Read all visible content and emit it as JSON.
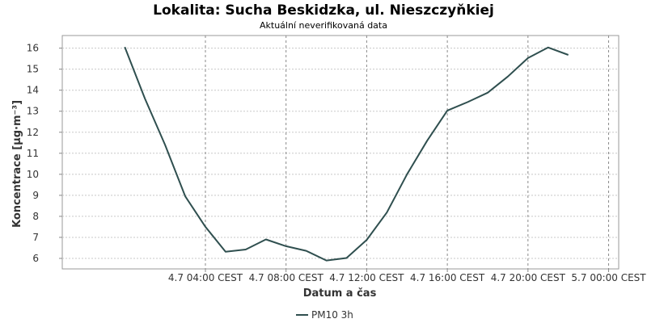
{
  "chart_data": {
    "type": "line",
    "title": "Lokalita: Sucha Beskidzka, ul. Nieszczyňkiej",
    "subtitle": "Aktuální neverifikovaná data",
    "xlabel": "Datum a čas",
    "ylabel": "Koncentrace [µg·m⁻³]",
    "x_range_hours": [
      -3.1,
      24.5
    ],
    "x_ticks": [
      {
        "hour": 4,
        "label": "4.7 04:00 CEST"
      },
      {
        "hour": 8,
        "label": "4.7 08:00 CEST"
      },
      {
        "hour": 12,
        "label": "4.7 12:00 CEST"
      },
      {
        "hour": 16,
        "label": "4.7 16:00 CEST"
      },
      {
        "hour": 20,
        "label": "4.7 20:00 CEST"
      },
      {
        "hour": 24,
        "label": "5.7 00:00 CEST"
      }
    ],
    "y_ticks": [
      6,
      7,
      8,
      9,
      10,
      11,
      12,
      13,
      14,
      15,
      16
    ],
    "ylim": [
      5.5,
      16.6
    ],
    "grid": true,
    "legend_position": "bottom",
    "series": [
      {
        "name": "PM10 3h",
        "color": "#2f4f4f",
        "x_hours": [
          0,
          1,
          2,
          3,
          4,
          5,
          6,
          7,
          8,
          9,
          10,
          11,
          12,
          13,
          14,
          15,
          16,
          17,
          18,
          19,
          20,
          21,
          22,
          23
        ],
        "values": [
          16.05,
          13.6,
          11.4,
          8.95,
          7.5,
          6.32,
          6.42,
          6.9,
          6.58,
          6.36,
          5.9,
          6.02,
          6.88,
          8.18,
          10.0,
          11.6,
          13.03,
          13.43,
          13.88,
          14.65,
          15.53,
          16.03,
          15.68,
          null
        ]
      }
    ]
  }
}
